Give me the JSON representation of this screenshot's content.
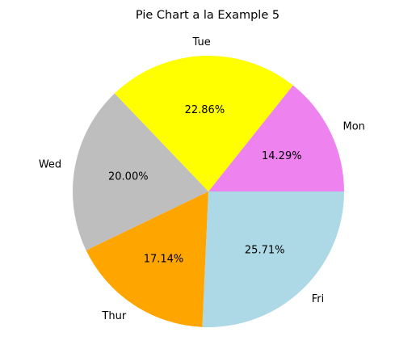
{
  "chart_data": {
    "type": "pie",
    "title": "Pie Chart a la Example 5",
    "start_angle_deg": 0,
    "direction": "counterclockwise",
    "legend": "none",
    "slices": [
      {
        "label": "Mon",
        "value": 14.29,
        "pct_label": "14.29%",
        "color": "#ee82ee"
      },
      {
        "label": "Tue",
        "value": 22.86,
        "pct_label": "22.86%",
        "color": "#ffff00"
      },
      {
        "label": "Wed",
        "value": 20.0,
        "pct_label": "20.00%",
        "color": "#bebebe"
      },
      {
        "label": "Thur",
        "value": 17.14,
        "pct_label": "17.14%",
        "color": "#ffa500"
      },
      {
        "label": "Fri",
        "value": 25.71,
        "pct_label": "25.71%",
        "color": "#add8e6"
      }
    ]
  }
}
